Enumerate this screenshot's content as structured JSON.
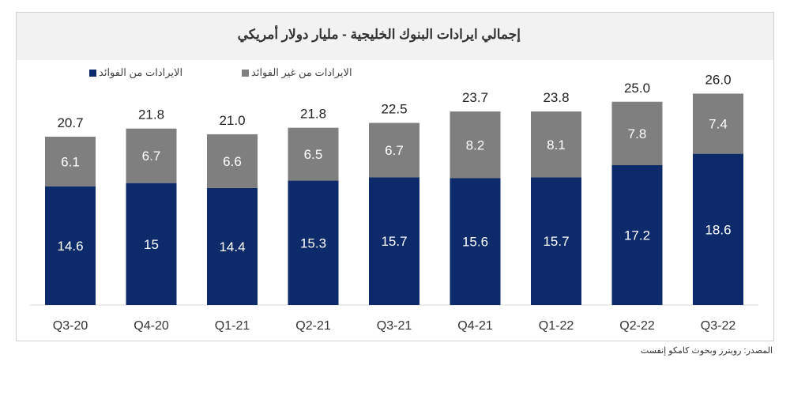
{
  "chart_data": {
    "type": "bar",
    "stacked": true,
    "title": "إجمالي ايرادات البنوك الخليجية - مليار دولار أمريكي",
    "categories": [
      "Q3-20",
      "Q4-20",
      "Q1-21",
      "Q2-21",
      "Q3-21",
      "Q4-21",
      "Q1-22",
      "Q2-22",
      "Q3-22"
    ],
    "series": [
      {
        "name": "الايرادات من الفوائد",
        "color": "#0d2b6b",
        "values": [
          14.6,
          15.0,
          14.4,
          15.3,
          15.7,
          15.6,
          15.7,
          17.2,
          18.6
        ]
      },
      {
        "name": "الايرادات من غير الفوائد",
        "color": "#7f7f7f",
        "values": [
          6.1,
          6.7,
          6.6,
          6.5,
          6.7,
          8.2,
          8.1,
          7.8,
          7.4
        ]
      }
    ],
    "totals": [
      "20.7",
      "21.8",
      "21.0",
      "21.8",
      "22.5",
      "23.7",
      "23.8",
      "25.0",
      "26.0"
    ],
    "xlabel": "",
    "ylabel": "",
    "ylim": [
      0,
      28
    ],
    "grid": false,
    "legend": "top-left",
    "source": "المصدر: رويترز وبحوث كامكو إنفست"
  }
}
